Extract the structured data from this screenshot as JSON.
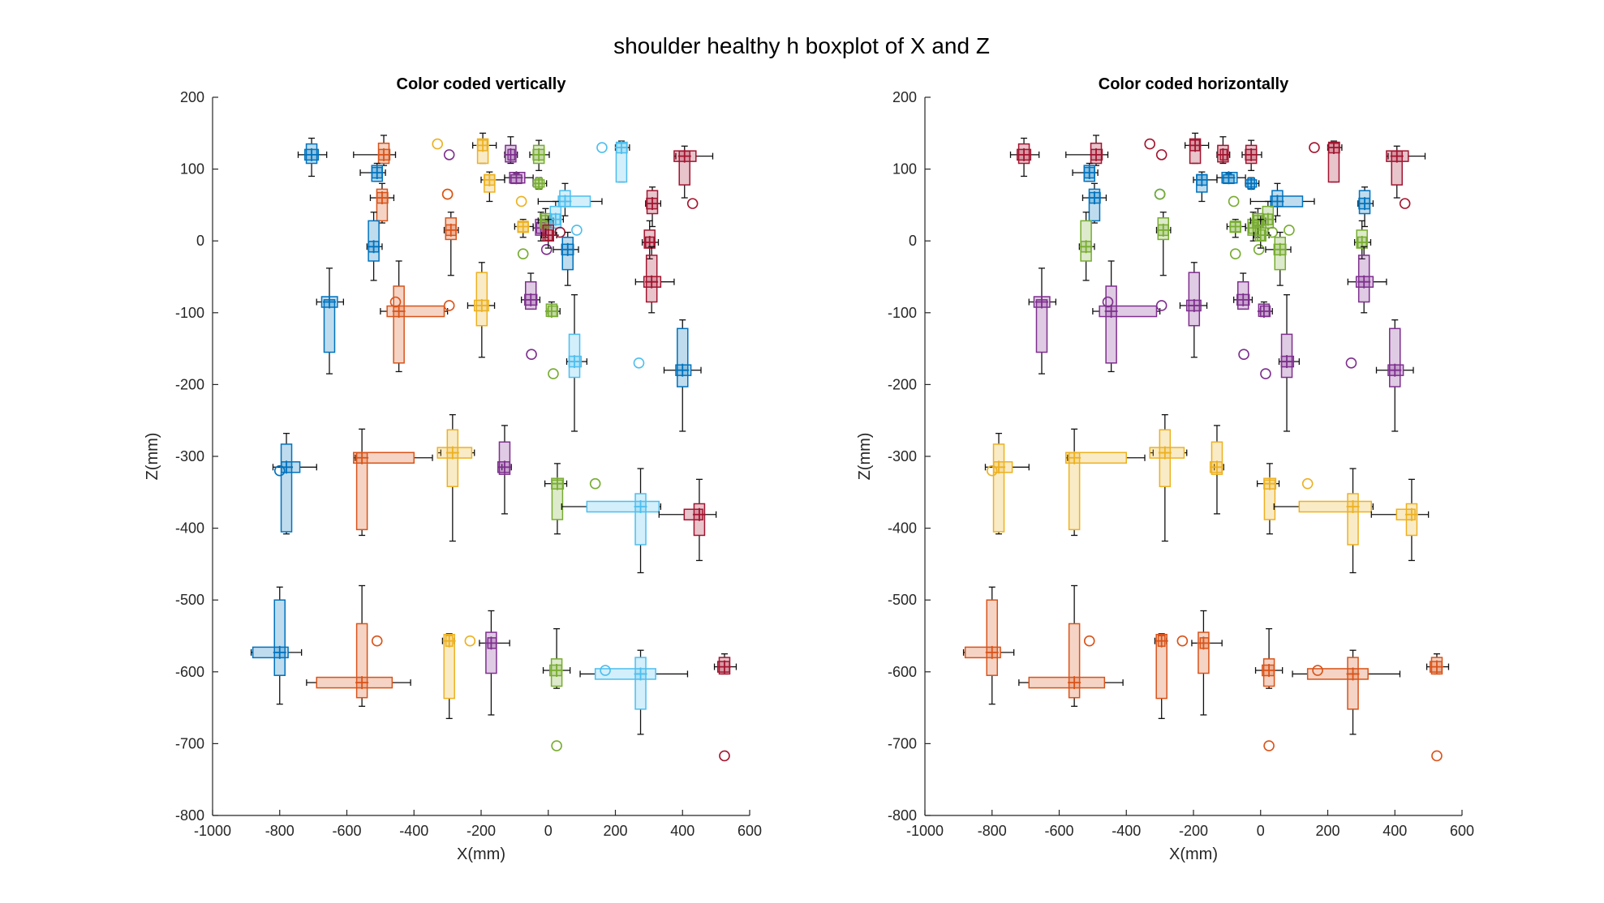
{
  "figure_title": "shoulder healthy h boxplot of X and Z",
  "palette": {
    "blue": "#0072BD",
    "orange": "#D95319",
    "yellow": "#EDB120",
    "purple": "#7E2F8E",
    "green": "#77AC30",
    "cyan": "#4DBEEE",
    "red": "#A2142F"
  },
  "horizontal_row_colors": [
    "red",
    "blue",
    "green",
    "purple",
    "yellow",
    "orange",
    "blue"
  ],
  "chart_data": [
    {
      "type": "boxplot",
      "title": "Color coded vertically",
      "color_mode": "vertical",
      "xlabel": "X(mm)",
      "ylabel": "Z(mm)",
      "xlim": [
        -1000,
        600
      ],
      "ylim": [
        -800,
        200
      ],
      "xticks": [
        -1000,
        -800,
        -600,
        -400,
        -200,
        0,
        200,
        400,
        600
      ],
      "yticks": [
        -800,
        -700,
        -600,
        -500,
        -400,
        -300,
        -200,
        -100,
        0,
        100,
        200
      ],
      "grid": false
    },
    {
      "type": "boxplot",
      "title": "Color coded horizontally",
      "color_mode": "horizontal",
      "xlabel": "X(mm)",
      "ylabel": "Z(mm)",
      "xlim": [
        -1000,
        600
      ],
      "ylim": [
        -800,
        200
      ],
      "xticks": [
        -1000,
        -800,
        -600,
        -400,
        -200,
        0,
        200,
        400,
        600
      ],
      "yticks": [
        -800,
        -700,
        -600,
        -500,
        -400,
        -300,
        -200,
        -100,
        0,
        100,
        200
      ],
      "grid": false
    }
  ],
  "markers": [
    {
      "row": 0,
      "col": 0,
      "x": {
        "wl": -745,
        "q1": -725,
        "med": -705,
        "q3": -685,
        "wh": -660
      },
      "z": {
        "wl": 90,
        "q1": 108,
        "med": 120,
        "q3": 135,
        "wh": 143
      },
      "out": []
    },
    {
      "row": 0,
      "col": 1,
      "x": {
        "wl": -580,
        "q1": -505,
        "med": -490,
        "q3": -472,
        "wh": -455
      },
      "z": {
        "wl": 105,
        "q1": 108,
        "med": 120,
        "q3": 136,
        "wh": 147
      },
      "out": []
    },
    {
      "row": 0,
      "col": 2,
      "x": {
        "wl": -225,
        "q1": -210,
        "med": -195,
        "q3": -182,
        "wh": -155
      },
      "z": {
        "wl": 108,
        "q1": 108,
        "med": 133,
        "q3": 142,
        "wh": 150
      },
      "out": [
        {
          "x": -330,
          "z": 135
        }
      ]
    },
    {
      "row": 0,
      "col": 3,
      "x": {
        "wl": -130,
        "q1": -120,
        "med": -112,
        "q3": -100,
        "wh": -92
      },
      "z": {
        "wl": 108,
        "q1": 110,
        "med": 120,
        "q3": 133,
        "wh": 145
      },
      "out": [
        {
          "x": -295,
          "z": 120
        }
      ]
    },
    {
      "row": 0,
      "col": 4,
      "x": {
        "wl": -55,
        "q1": -45,
        "med": -28,
        "q3": -12,
        "wh": 3
      },
      "z": {
        "wl": 98,
        "q1": 108,
        "med": 120,
        "q3": 133,
        "wh": 140
      },
      "out": []
    },
    {
      "row": 0,
      "col": 5,
      "x": {
        "wl": 200,
        "q1": 203,
        "med": 218,
        "q3": 235,
        "wh": 242
      },
      "z": {
        "wl": 82,
        "q1": 82,
        "med": 130,
        "q3": 136,
        "wh": 139
      },
      "out": [
        {
          "x": 160,
          "z": 130
        }
      ]
    },
    {
      "row": 0,
      "col": 6,
      "x": {
        "wl": 380,
        "q1": 375,
        "med": 406,
        "q3": 440,
        "wh": 490
      },
      "z": {
        "wl": 60,
        "q1": 78,
        "med": 118,
        "q3": 125,
        "wh": 132
      },
      "out": [
        {
          "x": 430,
          "z": 52
        }
      ]
    },
    {
      "row": 1,
      "col": 0,
      "x": {
        "wl": -560,
        "q1": -525,
        "med": -510,
        "q3": -495,
        "wh": -485
      },
      "z": {
        "wl": 83,
        "q1": 83,
        "med": 95,
        "q3": 105,
        "wh": 108
      },
      "out": []
    },
    {
      "row": 1,
      "col": 1,
      "x": {
        "wl": -530,
        "q1": -510,
        "med": -495,
        "q3": -478,
        "wh": -460
      },
      "z": {
        "wl": 25,
        "q1": 28,
        "med": 60,
        "q3": 72,
        "wh": 80
      },
      "out": []
    },
    {
      "row": 1,
      "col": 2,
      "x": {
        "wl": -200,
        "q1": -190,
        "med": -175,
        "q3": -160,
        "wh": -130
      },
      "z": {
        "wl": 55,
        "q1": 68,
        "med": 85,
        "q3": 92,
        "wh": 96
      },
      "out": [
        {
          "x": -300,
          "z": 65
        }
      ]
    },
    {
      "row": 1,
      "col": 3,
      "x": {
        "wl": -130,
        "q1": -115,
        "med": -95,
        "q3": -70,
        "wh": -45
      },
      "z": {
        "wl": 80,
        "q1": 80,
        "med": 88,
        "q3": 92,
        "wh": 94
      },
      "out": []
    },
    {
      "row": 1,
      "col": 4,
      "x": {
        "wl": -45,
        "q1": -38,
        "med": -28,
        "q3": -18,
        "wh": -5
      },
      "z": {
        "wl": 72,
        "q1": 75,
        "med": 80,
        "q3": 85,
        "wh": 88
      },
      "out": []
    },
    {
      "row": 1,
      "col": 5,
      "x": {
        "wl": -30,
        "q1": 30,
        "med": 50,
        "q3": 125,
        "wh": 160
      },
      "z": {
        "wl": 35,
        "q1": 48,
        "med": 55,
        "q3": 70,
        "wh": 80
      },
      "out": []
    },
    {
      "row": 1,
      "col": 6,
      "x": {
        "wl": 290,
        "q1": 293,
        "med": 310,
        "q3": 325,
        "wh": 335
      },
      "z": {
        "wl": 20,
        "q1": 38,
        "med": 52,
        "q3": 70,
        "wh": 75
      },
      "out": []
    },
    {
      "row": 2,
      "col": 0,
      "x": {
        "wl": -540,
        "q1": -535,
        "med": -520,
        "q3": -505,
        "wh": -495
      },
      "z": {
        "wl": -55,
        "q1": -28,
        "med": -8,
        "q3": 28,
        "wh": 40
      },
      "out": []
    },
    {
      "row": 2,
      "col": 1,
      "x": {
        "wl": -310,
        "q1": -305,
        "med": -290,
        "q3": -275,
        "wh": -268
      },
      "z": {
        "wl": -48,
        "q1": 2,
        "med": 15,
        "q3": 32,
        "wh": 40
      },
      "out": [
        {
          "x": -300,
          "z": 65
        }
      ]
    },
    {
      "row": 2,
      "col": 2,
      "x": {
        "wl": -100,
        "q1": -90,
        "med": -75,
        "q3": -60,
        "wh": -45
      },
      "z": {
        "wl": 5,
        "q1": 12,
        "med": 20,
        "q3": 26,
        "wh": 30
      },
      "out": [
        {
          "x": -80,
          "z": 55
        }
      ]
    },
    {
      "row": 2,
      "col": 3,
      "x": {
        "wl": -45,
        "q1": -35,
        "med": -22,
        "q3": -10,
        "wh": 0
      },
      "z": {
        "wl": 0,
        "q1": 8,
        "med": 18,
        "q3": 30,
        "wh": 40
      },
      "out": [
        {
          "x": -5,
          "z": -12
        }
      ]
    },
    {
      "row": 2,
      "col": 4,
      "x": {
        "wl": -30,
        "q1": -20,
        "med": -8,
        "q3": 5,
        "wh": 15
      },
      "z": {
        "wl": 5,
        "q1": 18,
        "med": 28,
        "q3": 38,
        "wh": 45
      },
      "out": [
        {
          "x": -75,
          "z": -18
        }
      ]
    },
    {
      "row": 2,
      "col": 5,
      "x": {
        "wl": 0,
        "q1": 10,
        "med": 22,
        "q3": 35,
        "wh": 45
      },
      "z": {
        "wl": 8,
        "q1": 18,
        "med": 30,
        "q3": 48,
        "wh": 55
      },
      "out": [
        {
          "x": 85,
          "z": 15
        }
      ]
    },
    {
      "row": 2,
      "col": 6,
      "x": {
        "wl": -20,
        "q1": -10,
        "med": 0,
        "q3": 12,
        "wh": 25
      },
      "z": {
        "wl": -10,
        "q1": 0,
        "med": 8,
        "q3": 22,
        "wh": 30
      },
      "out": [
        {
          "x": 35,
          "z": 12
        }
      ]
    },
    {
      "row": 2,
      "col": 7,
      "x": {
        "wl": 15,
        "q1": 40,
        "med": 58,
        "q3": 75,
        "wh": 90
      },
      "z": {
        "wl": -62,
        "q1": -40,
        "med": -12,
        "q3": 5,
        "wh": 12
      },
      "out": []
    },
    {
      "row": 2,
      "col": 8,
      "x": {
        "wl": 280,
        "q1": 290,
        "med": 302,
        "q3": 315,
        "wh": 328
      },
      "z": {
        "wl": -25,
        "q1": -10,
        "med": -2,
        "q3": 15,
        "wh": 28
      },
      "out": []
    },
    {
      "row": 3,
      "col": 0,
      "x": {
        "wl": -690,
        "q1": -675,
        "med": -652,
        "q3": -628,
        "wh": -610
      },
      "z": {
        "wl": -185,
        "q1": -155,
        "med": -85,
        "q3": -82,
        "wh": -38
      },
      "out": []
    },
    {
      "row": 3,
      "col": 1,
      "x": {
        "wl": -500,
        "q1": -480,
        "med": -445,
        "q3": -310,
        "wh": -300
      },
      "z": {
        "wl": -182,
        "q1": -170,
        "med": -98,
        "q3": -63,
        "wh": -28
      },
      "out": [
        {
          "x": -455,
          "z": -85
        },
        {
          "x": -295,
          "z": -90
        }
      ]
    },
    {
      "row": 3,
      "col": 2,
      "x": {
        "wl": -240,
        "q1": -220,
        "med": -198,
        "q3": -178,
        "wh": -160
      },
      "z": {
        "wl": -162,
        "q1": -118,
        "med": -90,
        "q3": -44,
        "wh": -30
      },
      "out": []
    },
    {
      "row": 3,
      "col": 3,
      "x": {
        "wl": -80,
        "q1": -70,
        "med": -52,
        "q3": -34,
        "wh": -25
      },
      "z": {
        "wl": -95,
        "q1": -95,
        "med": -82,
        "q3": -57,
        "wh": -45
      },
      "out": [
        {
          "x": -50,
          "z": -158
        }
      ]
    },
    {
      "row": 3,
      "col": 4,
      "x": {
        "wl": -5,
        "q1": 0,
        "med": 10,
        "q3": 28,
        "wh": 35
      },
      "z": {
        "wl": -105,
        "q1": -105,
        "med": -98,
        "q3": -88,
        "wh": -85
      },
      "out": [
        {
          "x": 15,
          "z": -185
        }
      ]
    },
    {
      "row": 3,
      "col": 5,
      "x": {
        "wl": 55,
        "q1": 62,
        "med": 78,
        "q3": 98,
        "wh": 115
      },
      "z": {
        "wl": -265,
        "q1": -190,
        "med": -168,
        "q3": -130,
        "wh": -75
      },
      "out": [
        {
          "x": 270,
          "z": -170
        }
      ]
    },
    {
      "row": 3,
      "col": 6,
      "x": {
        "wl": 260,
        "q1": 285,
        "med": 308,
        "q3": 335,
        "wh": 375
      },
      "z": {
        "wl": -100,
        "q1": -85,
        "med": -57,
        "q3": -20,
        "wh": -8
      },
      "out": []
    },
    {
      "row": 3,
      "col": 7,
      "x": {
        "wl": 345,
        "q1": 380,
        "med": 400,
        "q3": 425,
        "wh": 455
      },
      "z": {
        "wl": -265,
        "q1": -203,
        "med": -180,
        "q3": -122,
        "wh": -110
      },
      "out": []
    },
    {
      "row": 4,
      "col": 0,
      "x": {
        "wl": -820,
        "q1": -795,
        "med": -780,
        "q3": -740,
        "wh": -690
      },
      "z": {
        "wl": -408,
        "q1": -405,
        "med": -315,
        "q3": -283,
        "wh": -268
      },
      "out": [
        {
          "x": -800,
          "z": -320
        }
      ]
    },
    {
      "row": 4,
      "col": 1,
      "x": {
        "wl": -575,
        "q1": -580,
        "med": -555,
        "q3": -400,
        "wh": -345
      },
      "z": {
        "wl": -410,
        "q1": -402,
        "med": -302,
        "q3": -295,
        "wh": -262
      },
      "out": []
    },
    {
      "row": 4,
      "col": 2,
      "x": {
        "wl": -320,
        "q1": -330,
        "med": -285,
        "q3": -228,
        "wh": -220
      },
      "z": {
        "wl": -418,
        "q1": -342,
        "med": -295,
        "q3": -263,
        "wh": -242
      },
      "out": []
    },
    {
      "row": 4,
      "col": 3,
      "x": {
        "wl": -138,
        "q1": -150,
        "med": -130,
        "q3": -115,
        "wh": -110
      },
      "z": {
        "wl": -380,
        "q1": -325,
        "med": -315,
        "q3": -280,
        "wh": -257
      },
      "out": []
    },
    {
      "row": 4,
      "col": 4,
      "x": {
        "wl": -10,
        "q1": 10,
        "med": 27,
        "q3": 45,
        "wh": 55
      },
      "z": {
        "wl": -408,
        "q1": -388,
        "med": -338,
        "q3": -333,
        "wh": -310
      },
      "out": [
        {
          "x": 140,
          "z": -338
        }
      ]
    },
    {
      "row": 4,
      "col": 5,
      "x": {
        "wl": 40,
        "q1": 115,
        "med": 275,
        "q3": 330,
        "wh": 335
      },
      "z": {
        "wl": -462,
        "q1": -423,
        "med": -370,
        "q3": -352,
        "wh": -317
      },
      "out": []
    },
    {
      "row": 4,
      "col": 6,
      "x": {
        "wl": 330,
        "q1": 405,
        "med": 450,
        "q3": 460,
        "wh": 500
      },
      "z": {
        "wl": -445,
        "q1": -410,
        "med": -381,
        "q3": -366,
        "wh": -332
      },
      "out": []
    },
    {
      "row": 5,
      "col": 0,
      "x": {
        "wl": -885,
        "q1": -880,
        "med": -800,
        "q3": -775,
        "wh": -735
      },
      "z": {
        "wl": -645,
        "q1": -605,
        "med": -573,
        "q3": -500,
        "wh": -482
      },
      "out": []
    },
    {
      "row": 5,
      "col": 1,
      "x": {
        "wl": -720,
        "q1": -690,
        "med": -555,
        "q3": -465,
        "wh": -410
      },
      "z": {
        "wl": -648,
        "q1": -636,
        "med": -615,
        "q3": -533,
        "wh": -480
      },
      "out": [
        {
          "x": -510,
          "z": -557
        }
      ]
    },
    {
      "row": 5,
      "col": 2,
      "x": {
        "wl": -315,
        "q1": -305,
        "med": -295,
        "q3": -285,
        "wh": -280
      },
      "z": {
        "wl": -665,
        "q1": -637,
        "med": -557,
        "q3": -548,
        "wh": -547
      },
      "out": [
        {
          "x": -233,
          "z": -557
        }
      ]
    },
    {
      "row": 5,
      "col": 3,
      "x": {
        "wl": -205,
        "q1": -180,
        "med": -170,
        "q3": -155,
        "wh": -115
      },
      "z": {
        "wl": -660,
        "q1": -602,
        "med": -560,
        "q3": -545,
        "wh": -515
      },
      "out": []
    },
    {
      "row": 5,
      "col": 4,
      "x": {
        "wl": -15,
        "q1": 5,
        "med": 25,
        "q3": 40,
        "wh": 65
      },
      "z": {
        "wl": -623,
        "q1": -620,
        "med": -598,
        "q3": -582,
        "wh": -540
      },
      "out": [
        {
          "x": 25,
          "z": -703
        }
      ]
    },
    {
      "row": 5,
      "col": 5,
      "x": {
        "wl": 95,
        "q1": 140,
        "med": 275,
        "q3": 320,
        "wh": 415
      },
      "z": {
        "wl": -687,
        "q1": -652,
        "med": -603,
        "q3": -580,
        "wh": -570
      },
      "out": [
        {
          "x": 170,
          "z": -598
        }
      ]
    },
    {
      "row": 5,
      "col": 6,
      "x": {
        "wl": 495,
        "q1": 505,
        "med": 525,
        "q3": 540,
        "wh": 560
      },
      "z": {
        "wl": -603,
        "q1": -603,
        "med": -593,
        "q3": -580,
        "wh": -575
      },
      "out": [
        {
          "x": 525,
          "z": -717
        }
      ]
    }
  ]
}
